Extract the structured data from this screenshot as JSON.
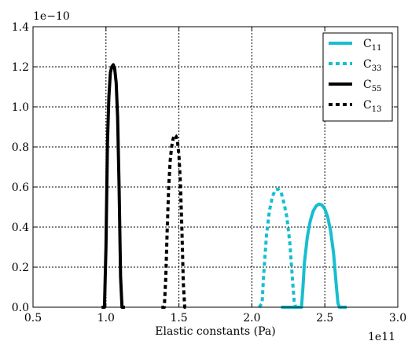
{
  "chart_data": {
    "type": "line",
    "xlabel": "Elastic constants (Pa)",
    "ylabel": "",
    "x_multiplier": "1e11",
    "y_multiplier": "1e−10",
    "xlim": [
      0.5,
      3.0
    ],
    "ylim": [
      0.0,
      1.4
    ],
    "x_ticks": [
      "0.5",
      "1.0",
      "1.5",
      "2.0",
      "2.5",
      "3.0"
    ],
    "y_ticks": [
      "0.0",
      "0.2",
      "0.4",
      "0.6",
      "0.8",
      "1.0",
      "1.2",
      "1.4"
    ],
    "grid": true,
    "legend_position": "top-right",
    "series": [
      {
        "name": "C",
        "sub": "11",
        "color": "#17becf",
        "style": "solid",
        "x": [
          2.2,
          2.34,
          2.35,
          2.36,
          2.38,
          2.4,
          2.42,
          2.44,
          2.46,
          2.48,
          2.5,
          2.52,
          2.54,
          2.56,
          2.58,
          2.59,
          2.6,
          2.65
        ],
        "y": [
          0.0,
          0.0,
          0.1,
          0.22,
          0.35,
          0.43,
          0.48,
          0.505,
          0.515,
          0.51,
          0.49,
          0.45,
          0.38,
          0.27,
          0.1,
          0.02,
          0.0,
          0.0
        ]
      },
      {
        "name": "C",
        "sub": "33",
        "color": "#17becf",
        "style": "dotted",
        "x": [
          2.05,
          2.07,
          2.08,
          2.1,
          2.12,
          2.14,
          2.16,
          2.18,
          2.2,
          2.22,
          2.24,
          2.26,
          2.28,
          2.29,
          2.3,
          2.32
        ],
        "y": [
          0.0,
          0.02,
          0.15,
          0.36,
          0.48,
          0.55,
          0.585,
          0.59,
          0.575,
          0.52,
          0.45,
          0.32,
          0.12,
          0.03,
          0.0,
          0.0
        ]
      },
      {
        "name": "C",
        "sub": "55",
        "color": "#000000",
        "style": "solid",
        "x": [
          0.97,
          0.99,
          1.0,
          1.01,
          1.02,
          1.03,
          1.04,
          1.05,
          1.06,
          1.07,
          1.08,
          1.09,
          1.1,
          1.11,
          1.13
        ],
        "y": [
          0.0,
          0.0,
          0.3,
          0.82,
          1.05,
          1.17,
          1.2,
          1.21,
          1.19,
          1.12,
          0.95,
          0.6,
          0.15,
          0.0,
          0.0
        ]
      },
      {
        "name": "C",
        "sub": "13",
        "color": "#000000",
        "style": "dotted",
        "x": [
          1.38,
          1.4,
          1.41,
          1.42,
          1.43,
          1.44,
          1.45,
          1.46,
          1.47,
          1.48,
          1.49,
          1.5,
          1.51,
          1.52,
          1.53,
          1.54,
          1.56
        ],
        "y": [
          0.0,
          0.0,
          0.15,
          0.4,
          0.6,
          0.73,
          0.8,
          0.84,
          0.86,
          0.855,
          0.83,
          0.76,
          0.62,
          0.4,
          0.12,
          0.0,
          0.0
        ]
      }
    ]
  }
}
